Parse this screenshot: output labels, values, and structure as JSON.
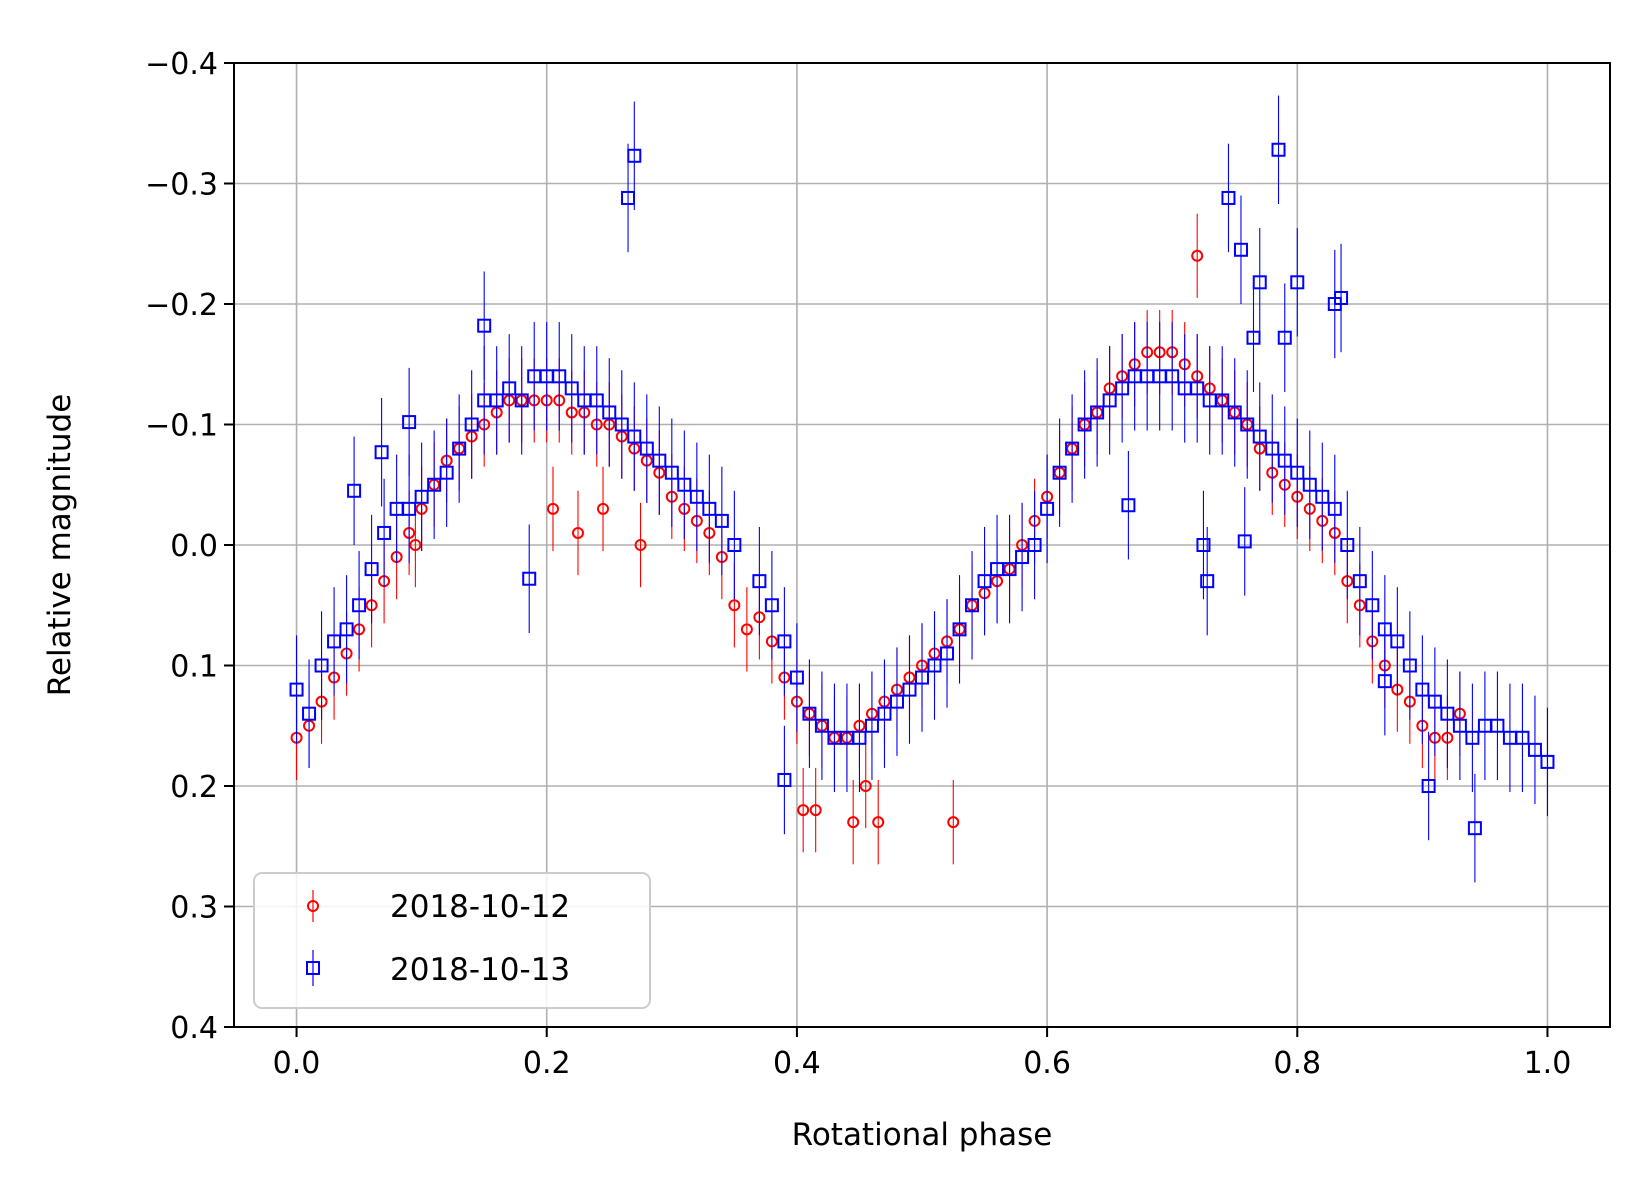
{
  "chart_data": {
    "type": "scatter",
    "xlabel": "Rotational phase",
    "ylabel": "Relative magnitude",
    "xlim": [
      -0.05,
      1.05
    ],
    "ylim": [
      0.4,
      -0.4
    ],
    "y_inverted": true,
    "grid": true,
    "legend_position": "lower-left",
    "x_ticks": [
      "0.0",
      "0.2",
      "0.4",
      "0.6",
      "0.8",
      "1.0"
    ],
    "y_ticks": [
      "−0.4",
      "−0.3",
      "−0.2",
      "−0.1",
      "0.0",
      "0.1",
      "0.2",
      "0.3",
      "0.4"
    ],
    "series": [
      {
        "name": "2018-10-12",
        "color": "#ff0000",
        "marker": "circle",
        "error_bar": 0.035,
        "x": [
          0.0,
          0.01,
          0.02,
          0.03,
          0.04,
          0.05,
          0.06,
          0.07,
          0.08,
          0.09,
          0.1,
          0.11,
          0.12,
          0.13,
          0.14,
          0.15,
          0.16,
          0.17,
          0.18,
          0.19,
          0.2,
          0.21,
          0.22,
          0.23,
          0.24,
          0.25,
          0.26,
          0.27,
          0.28,
          0.29,
          0.3,
          0.31,
          0.32,
          0.33,
          0.34,
          0.35,
          0.36,
          0.37,
          0.38,
          0.39,
          0.4,
          0.41,
          0.42,
          0.43,
          0.44,
          0.45,
          0.46,
          0.47,
          0.48,
          0.49,
          0.5,
          0.51,
          0.52,
          0.53,
          0.54,
          0.55,
          0.56,
          0.57,
          0.58,
          0.59,
          0.6,
          0.61,
          0.62,
          0.63,
          0.64,
          0.65,
          0.66,
          0.67,
          0.68,
          0.69,
          0.7,
          0.71,
          0.72,
          0.73,
          0.74,
          0.75,
          0.76,
          0.77,
          0.78,
          0.79,
          0.8,
          0.81,
          0.82,
          0.83,
          0.84,
          0.85,
          0.86,
          0.87,
          0.88,
          0.89,
          0.9,
          0.91,
          0.92,
          0.93,
          0.095,
          0.205,
          0.225,
          0.245,
          0.405,
          0.415,
          0.445,
          0.455,
          0.465,
          0.525,
          0.275,
          0.72
        ],
        "y": [
          0.16,
          0.15,
          0.13,
          0.11,
          0.09,
          0.07,
          0.05,
          0.03,
          0.01,
          -0.01,
          -0.03,
          -0.05,
          -0.07,
          -0.08,
          -0.09,
          -0.1,
          -0.11,
          -0.12,
          -0.12,
          -0.12,
          -0.12,
          -0.12,
          -0.11,
          -0.11,
          -0.1,
          -0.1,
          -0.09,
          -0.08,
          -0.07,
          -0.06,
          -0.04,
          -0.03,
          -0.02,
          -0.01,
          0.01,
          0.05,
          0.07,
          0.06,
          0.08,
          0.11,
          0.13,
          0.14,
          0.15,
          0.16,
          0.16,
          0.15,
          0.14,
          0.13,
          0.12,
          0.11,
          0.1,
          0.09,
          0.08,
          0.07,
          0.05,
          0.04,
          0.03,
          0.02,
          0.0,
          -0.02,
          -0.04,
          -0.06,
          -0.08,
          -0.1,
          -0.11,
          -0.13,
          -0.14,
          -0.15,
          -0.16,
          -0.16,
          -0.16,
          -0.15,
          -0.14,
          -0.13,
          -0.12,
          -0.11,
          -0.1,
          -0.08,
          -0.06,
          -0.05,
          -0.04,
          -0.03,
          -0.02,
          -0.01,
          0.03,
          0.05,
          0.08,
          0.1,
          0.12,
          0.13,
          0.15,
          0.16,
          0.16,
          0.14,
          0.0,
          -0.03,
          -0.01,
          -0.03,
          0.22,
          0.22,
          0.23,
          0.2,
          0.23,
          0.23,
          0.0,
          -0.24
        ]
      },
      {
        "name": "2018-10-13",
        "color": "#0000ff",
        "marker": "square",
        "error_bar": 0.045,
        "x": [
          0.0,
          0.01,
          0.02,
          0.03,
          0.04,
          0.05,
          0.06,
          0.07,
          0.08,
          0.09,
          0.1,
          0.11,
          0.12,
          0.13,
          0.14,
          0.15,
          0.16,
          0.17,
          0.18,
          0.19,
          0.2,
          0.21,
          0.22,
          0.23,
          0.24,
          0.25,
          0.26,
          0.27,
          0.28,
          0.29,
          0.3,
          0.31,
          0.32,
          0.33,
          0.34,
          0.35,
          0.37,
          0.38,
          0.39,
          0.4,
          0.41,
          0.42,
          0.43,
          0.44,
          0.45,
          0.46,
          0.47,
          0.48,
          0.49,
          0.5,
          0.51,
          0.52,
          0.53,
          0.54,
          0.55,
          0.56,
          0.57,
          0.58,
          0.59,
          0.6,
          0.61,
          0.62,
          0.63,
          0.64,
          0.65,
          0.66,
          0.67,
          0.68,
          0.69,
          0.7,
          0.71,
          0.72,
          0.73,
          0.74,
          0.75,
          0.76,
          0.77,
          0.78,
          0.79,
          0.8,
          0.81,
          0.82,
          0.83,
          0.84,
          0.85,
          0.86,
          0.87,
          0.88,
          0.89,
          0.9,
          0.91,
          0.92,
          0.93,
          0.94,
          0.95,
          0.96,
          0.97,
          0.98,
          0.99,
          1.0,
          0.046,
          0.068,
          0.09,
          0.15,
          0.186,
          0.265,
          0.27,
          0.39,
          0.665,
          0.725,
          0.728,
          0.758,
          0.745,
          0.755,
          0.765,
          0.77,
          0.785,
          0.79,
          0.8,
          0.83,
          0.835,
          0.87,
          0.905,
          0.942
        ],
        "y": [
          0.12,
          0.14,
          0.1,
          0.08,
          0.07,
          0.05,
          0.02,
          -0.01,
          -0.03,
          -0.03,
          -0.04,
          -0.05,
          -0.06,
          -0.08,
          -0.1,
          -0.12,
          -0.12,
          -0.13,
          -0.12,
          -0.14,
          -0.14,
          -0.14,
          -0.13,
          -0.12,
          -0.12,
          -0.11,
          -0.1,
          -0.09,
          -0.08,
          -0.07,
          -0.06,
          -0.05,
          -0.04,
          -0.03,
          -0.02,
          0.0,
          0.03,
          0.05,
          0.08,
          0.11,
          0.14,
          0.15,
          0.16,
          0.16,
          0.16,
          0.15,
          0.14,
          0.13,
          0.12,
          0.11,
          0.1,
          0.09,
          0.07,
          0.05,
          0.03,
          0.02,
          0.02,
          0.01,
          0.0,
          -0.03,
          -0.06,
          -0.08,
          -0.1,
          -0.11,
          -0.12,
          -0.13,
          -0.14,
          -0.14,
          -0.14,
          -0.14,
          -0.13,
          -0.13,
          -0.12,
          -0.12,
          -0.11,
          -0.1,
          -0.09,
          -0.08,
          -0.07,
          -0.06,
          -0.05,
          -0.04,
          -0.03,
          0.0,
          0.03,
          0.05,
          0.07,
          0.08,
          0.1,
          0.12,
          0.13,
          0.14,
          0.15,
          0.16,
          0.15,
          0.15,
          0.16,
          0.16,
          0.17,
          0.18,
          -0.045,
          -0.077,
          -0.102,
          -0.182,
          0.028,
          -0.288,
          -0.323,
          0.195,
          -0.033,
          0.0,
          0.03,
          -0.003,
          -0.288,
          -0.245,
          -0.172,
          -0.218,
          -0.328,
          -0.172,
          -0.218,
          -0.2,
          -0.205,
          0.113,
          0.2,
          0.235
        ]
      }
    ]
  }
}
